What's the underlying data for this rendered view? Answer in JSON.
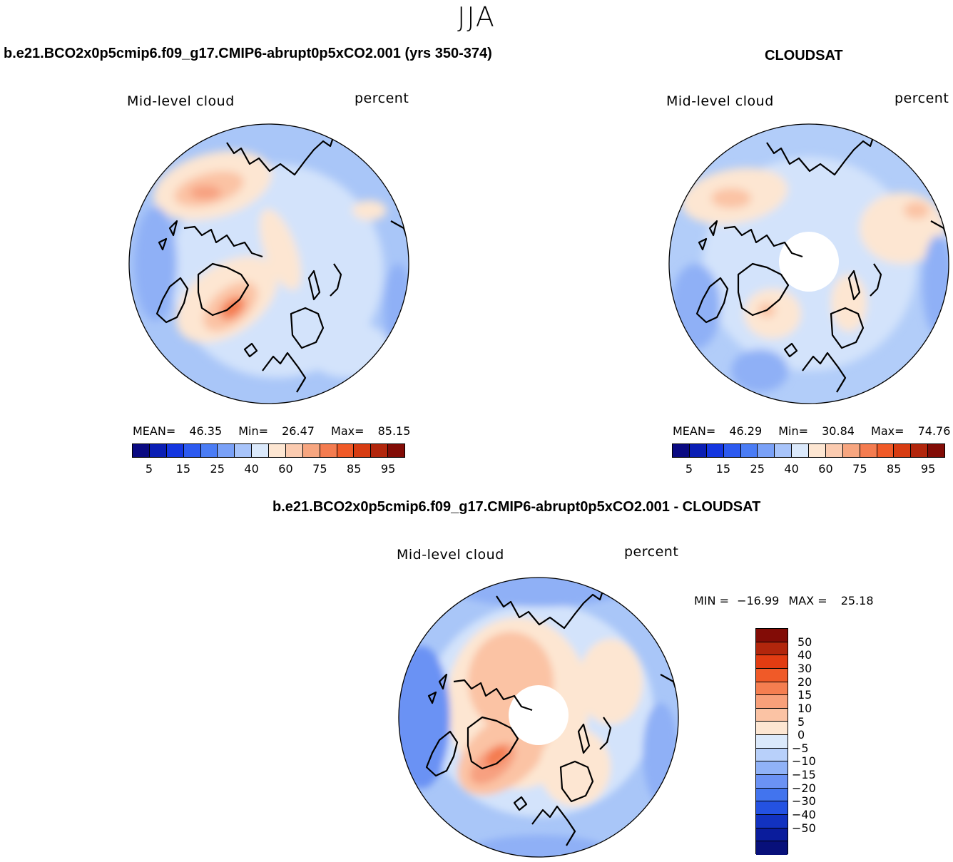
{
  "season": "JJA",
  "panels": {
    "model": {
      "title": "b.e21.BCO2x0p5cmip6.f09_g17.CMIP6-abrupt0p5xCO2.001 (yrs 350-374)",
      "variable": "Mid-level cloud",
      "units": "percent",
      "stats": {
        "mean_label": "MEAN=",
        "mean": "46.35",
        "min_label": "Min=",
        "min": "26.47",
        "max_label": "Max=",
        "max": "85.15"
      }
    },
    "obs": {
      "title": "CLOUDSAT",
      "variable": "Mid-level cloud",
      "units": "percent",
      "stats": {
        "mean_label": "MEAN=",
        "mean": "46.29",
        "min_label": "Min=",
        "min": "30.84",
        "max_label": "Max=",
        "max": "74.76"
      }
    },
    "diff": {
      "title": "b.e21.BCO2x0p5cmip6.f09_g17.CMIP6-abrupt0p5xCO2.001 - CLOUDSAT",
      "variable": "Mid-level cloud",
      "units": "percent",
      "stats": {
        "min_label": "MIN =",
        "min": "−16.99",
        "max_label": "MAX =",
        "max": "25.18"
      }
    }
  },
  "colorbar_main": {
    "colors": [
      "#0a0a82",
      "#0a1eb4",
      "#1436e0",
      "#2d5af0",
      "#4a7cf5",
      "#7aa1f7",
      "#a8c4fa",
      "#dbe9fb",
      "#fde6d2",
      "#fbcbb0",
      "#f7a680",
      "#f47c50",
      "#f05a28",
      "#d73c12",
      "#b2260c",
      "#820c06"
    ],
    "tick_labels": [
      "5",
      "15",
      "25",
      "40",
      "60",
      "75",
      "85",
      "95"
    ]
  },
  "colorbar_diff": {
    "colors": [
      "#820c06",
      "#b2260c",
      "#e23c12",
      "#f05a28",
      "#f57e50",
      "#f8a07a",
      "#fbc3a4",
      "#fde6d2",
      "#dbe9fb",
      "#b8d0fa",
      "#90b2f7",
      "#6b92f4",
      "#4274ee",
      "#2452e2",
      "#1232c0",
      "#0a1c9c",
      "#08107a"
    ],
    "tick_labels": [
      "50",
      "40",
      "30",
      "20",
      "15",
      "10",
      "5",
      "0",
      "−5",
      "−10",
      "−15",
      "−20",
      "−30",
      "−40",
      "−50"
    ]
  },
  "map_colors": {
    "ocean_base": "#a9c6f8",
    "light": "#d9e8fb",
    "warm1": "#fde6d2",
    "warm2": "#fbc3a4",
    "warm3": "#f7a080",
    "warm4": "#f47c50",
    "cool": "#7ea4f6",
    "coast": "#000000"
  }
}
